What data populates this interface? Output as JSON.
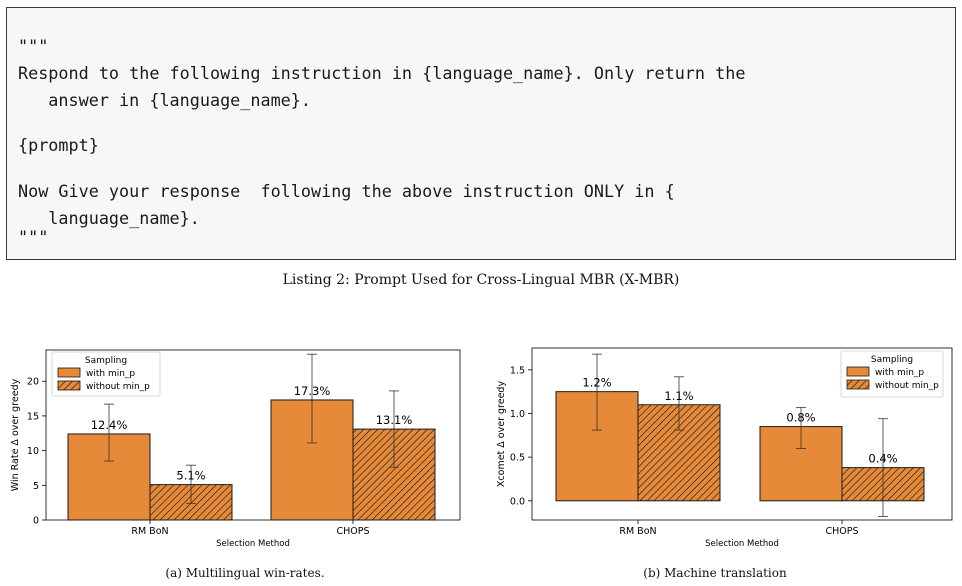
{
  "listing": {
    "lines": [
      "\"\"\"",
      "Respond to the following instruction in {language_name}. Only return the",
      "   answer in {language_name}.",
      "",
      "{prompt}",
      "",
      "Now Give your response  following the above instruction ONLY in {",
      "   language_name}.",
      "\"\"\""
    ],
    "caption": "Listing 2: Prompt Used for Cross-Lingual MBR (X-MBR)"
  },
  "colors": {
    "bar_fill": "#e68a3a",
    "bar_edge": "#1a1a1a",
    "hatch": "#1a1a1a"
  },
  "captions": {
    "left": "(a) Multilingual win-rates.",
    "right": "(b) Machine translation"
  },
  "chart_data": [
    {
      "type": "bar",
      "xlabel": "Selection Method",
      "ylabel": "Win Rate Δ over greedy",
      "categories": [
        "RM BoN",
        "CHOPS"
      ],
      "ylim": [
        0,
        24.5
      ],
      "yticks": [
        0,
        5,
        10,
        15,
        20
      ],
      "ytick_labels": [
        "0",
        "5",
        "10",
        "15",
        "20"
      ],
      "grid": false,
      "legend": {
        "title": "Sampling",
        "position": "top-left"
      },
      "series": [
        {
          "name": "with min_p",
          "hatch": false,
          "values": [
            12.4,
            17.3
          ],
          "labels": [
            "12.4%",
            "17.3%"
          ],
          "err_low": [
            8.5,
            11.1
          ],
          "err_high": [
            16.7,
            23.9
          ]
        },
        {
          "name": "without min_p",
          "hatch": true,
          "values": [
            5.1,
            13.1
          ],
          "labels": [
            "5.1%",
            "13.1%"
          ],
          "err_low": [
            2.4,
            7.6
          ],
          "err_high": [
            7.9,
            18.6
          ]
        }
      ]
    },
    {
      "type": "bar",
      "xlabel": "Selection Method",
      "ylabel": "Xcomet Δ over greedy",
      "categories": [
        "RM BoN",
        "CHOPS"
      ],
      "ylim": [
        -0.22,
        1.75
      ],
      "yticks": [
        0,
        0.5,
        1.0,
        1.5
      ],
      "ytick_labels": [
        "0.0",
        "0.5",
        "1.0",
        "1.5"
      ],
      "grid": false,
      "legend": {
        "title": "Sampling",
        "position": "top-right"
      },
      "series": [
        {
          "name": "with min_p",
          "hatch": false,
          "values": [
            1.25,
            0.85
          ],
          "labels": [
            "1.2%",
            "0.8%"
          ],
          "err_low": [
            0.81,
            0.6
          ],
          "err_high": [
            1.68,
            1.07
          ]
        },
        {
          "name": "without min_p",
          "hatch": true,
          "values": [
            1.1,
            0.38
          ],
          "labels": [
            "1.1%",
            "0.4%"
          ],
          "err_low": [
            0.81,
            -0.18
          ],
          "err_high": [
            1.42,
            0.94
          ]
        }
      ]
    }
  ]
}
